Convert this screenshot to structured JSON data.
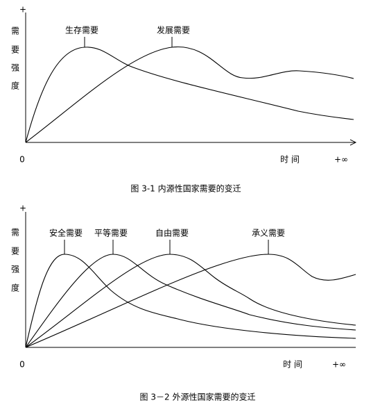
{
  "figures": [
    {
      "y_axis_top": "+",
      "y_axis_label": [
        "需",
        "要",
        "强",
        "度"
      ],
      "origin": "0",
      "x_axis_label": "时 间",
      "x_axis_end": "+∞",
      "curve_labels": [
        "生存需要",
        "发展需要"
      ],
      "caption": "图 3-1  内源性国家需要的变迁"
    },
    {
      "y_axis_top": "+",
      "y_axis_label": [
        "需",
        "要",
        "强",
        "度"
      ],
      "origin": "0",
      "x_axis_label": "时 间",
      "x_axis_end": "+∞",
      "curve_labels": [
        "安全需要",
        "平等需要",
        "自由需要",
        "承义需要"
      ],
      "caption": "图 3－2  外源性国家需要的变迁"
    }
  ]
}
